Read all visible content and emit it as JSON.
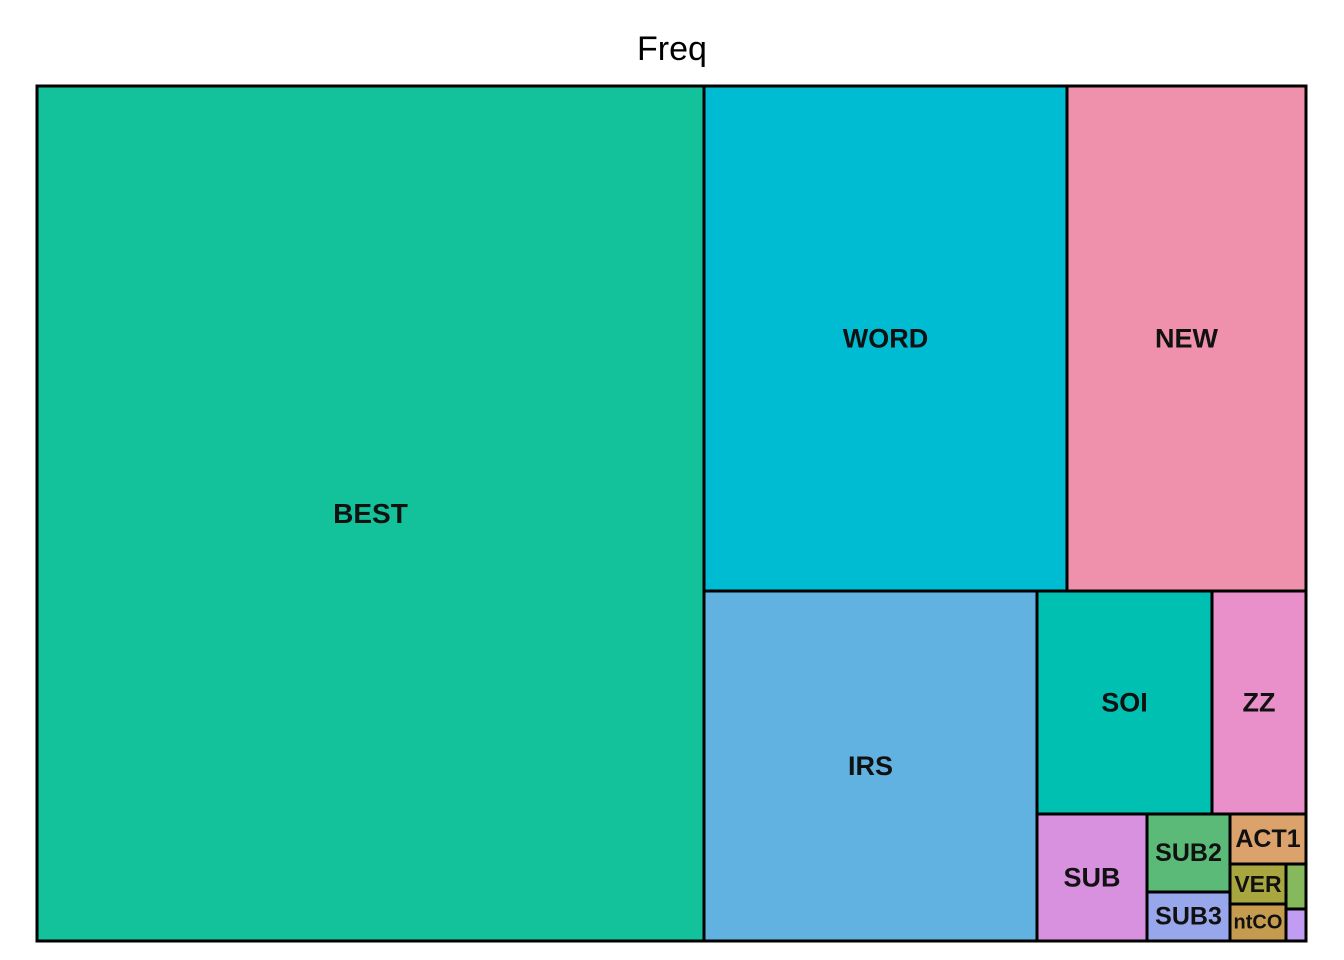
{
  "chart_data": {
    "type": "treemap",
    "title": "Freq",
    "items": [
      {
        "label": "BEST",
        "value": 570,
        "color": "#13C19B"
      },
      {
        "label": "WORD",
        "value": 182,
        "color": "#00BCD3"
      },
      {
        "label": "NEW",
        "value": 120,
        "color": "#EF91AC"
      },
      {
        "label": "IRS",
        "value": 116,
        "color": "#61B2E1"
      },
      {
        "label": "SOI",
        "value": 38,
        "color": "#00C0B2"
      },
      {
        "label": "ZZ",
        "value": 20,
        "color": "#E98FCA"
      },
      {
        "label": "SUB",
        "value": 12,
        "color": "#D891DE"
      },
      {
        "label": "SUB2",
        "value": 6,
        "color": "#5CBA79"
      },
      {
        "label": "SUB3",
        "value": 4,
        "color": "#98A6EB"
      },
      {
        "label": "ACT1",
        "value": 2.2,
        "color": "#DBA26C"
      },
      {
        "label": "VER",
        "value": 1.5,
        "color": "#A8A73F"
      },
      {
        "label": "ntCO",
        "value": 1.3,
        "color": "#C59C4F"
      },
      {
        "label": "",
        "value": 0.5,
        "color": "#85B95C"
      },
      {
        "label": "",
        "value": 0.3,
        "color": "#C09CF2"
      }
    ]
  }
}
